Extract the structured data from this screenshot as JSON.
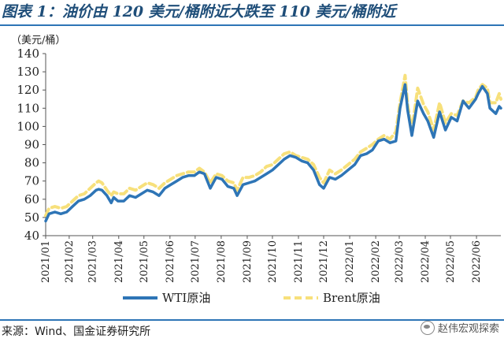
{
  "figure": {
    "title": "图表 1：油价由 120 美元/桶附近大跌至 110 美元/桶附近",
    "source": "来源：Wind、国金证券研究所",
    "watermark": "赵伟宏观探索"
  },
  "colors": {
    "wti": "#2e75b6",
    "brent": "#f7e07b",
    "title": "#1f4e79",
    "rule": "#2e75b6"
  },
  "chart_data": {
    "type": "line",
    "unit_label": "（美元/桶）",
    "ylim": [
      40,
      140
    ],
    "yticks": [
      40,
      50,
      60,
      70,
      80,
      90,
      100,
      110,
      120,
      130,
      140
    ],
    "xlim": [
      "2021-01-04",
      "2022-06-30"
    ],
    "xticks": [
      "2021/01",
      "2021/02",
      "2021/03",
      "2021/04",
      "2021/05",
      "2021/06",
      "2021/07",
      "2021/08",
      "2021/09",
      "2021/10",
      "2021/11",
      "2021/12",
      "2022/01",
      "2022/02",
      "2022/03",
      "2022/04",
      "2022/05",
      "2022/06"
    ],
    "grid": false,
    "legend_position": "bottom",
    "series": [
      {
        "name": "WTI原油",
        "color": "#2e75b6",
        "style": "solid",
        "points": [
          [
            "2021-01-04",
            48
          ],
          [
            "2021-01-08",
            52
          ],
          [
            "2021-01-15",
            53
          ],
          [
            "2021-01-22",
            52
          ],
          [
            "2021-01-29",
            53
          ],
          [
            "2021-02-05",
            56
          ],
          [
            "2021-02-12",
            59
          ],
          [
            "2021-02-19",
            60
          ],
          [
            "2021-02-26",
            62
          ],
          [
            "2021-03-05",
            65
          ],
          [
            "2021-03-08",
            65.5
          ],
          [
            "2021-03-12",
            65
          ],
          [
            "2021-03-18",
            62
          ],
          [
            "2021-03-23",
            58
          ],
          [
            "2021-03-26",
            61
          ],
          [
            "2021-03-31",
            59
          ],
          [
            "2021-04-07",
            59
          ],
          [
            "2021-04-14",
            62
          ],
          [
            "2021-04-21",
            61
          ],
          [
            "2021-04-28",
            63
          ],
          [
            "2021-05-05",
            65
          ],
          [
            "2021-05-12",
            64
          ],
          [
            "2021-05-19",
            62
          ],
          [
            "2021-05-26",
            66
          ],
          [
            "2021-06-02",
            68
          ],
          [
            "2021-06-09",
            70
          ],
          [
            "2021-06-16",
            72
          ],
          [
            "2021-06-23",
            73
          ],
          [
            "2021-06-30",
            73
          ],
          [
            "2021-07-06",
            75
          ],
          [
            "2021-07-12",
            74
          ],
          [
            "2021-07-19",
            66
          ],
          [
            "2021-07-26",
            72
          ],
          [
            "2021-08-02",
            71
          ],
          [
            "2021-08-09",
            67
          ],
          [
            "2021-08-16",
            66
          ],
          [
            "2021-08-20",
            62
          ],
          [
            "2021-08-27",
            68
          ],
          [
            "2021-09-03",
            69
          ],
          [
            "2021-09-10",
            70
          ],
          [
            "2021-09-17",
            72
          ],
          [
            "2021-09-24",
            74
          ],
          [
            "2021-10-01",
            76
          ],
          [
            "2021-10-08",
            79
          ],
          [
            "2021-10-15",
            82
          ],
          [
            "2021-10-22",
            84
          ],
          [
            "2021-10-29",
            83
          ],
          [
            "2021-11-05",
            81
          ],
          [
            "2021-11-12",
            80
          ],
          [
            "2021-11-19",
            76
          ],
          [
            "2021-11-26",
            68
          ],
          [
            "2021-12-01",
            66
          ],
          [
            "2021-12-08",
            72
          ],
          [
            "2021-12-15",
            71
          ],
          [
            "2021-12-22",
            73
          ],
          [
            "2021-12-30",
            76
          ],
          [
            "2022-01-07",
            79
          ],
          [
            "2022-01-14",
            84
          ],
          [
            "2022-01-21",
            85
          ],
          [
            "2022-01-28",
            87
          ],
          [
            "2022-02-04",
            92
          ],
          [
            "2022-02-11",
            93
          ],
          [
            "2022-02-18",
            91
          ],
          [
            "2022-02-25",
            92
          ],
          [
            "2022-03-02",
            110
          ],
          [
            "2022-03-08",
            123
          ],
          [
            "2022-03-11",
            109
          ],
          [
            "2022-03-16",
            95
          ],
          [
            "2022-03-23",
            114
          ],
          [
            "2022-03-30",
            107
          ],
          [
            "2022-04-04",
            103
          ],
          [
            "2022-04-11",
            94
          ],
          [
            "2022-04-18",
            108
          ],
          [
            "2022-04-25",
            98
          ],
          [
            "2022-05-02",
            105
          ],
          [
            "2022-05-09",
            103
          ],
          [
            "2022-05-16",
            114
          ],
          [
            "2022-05-23",
            110
          ],
          [
            "2022-05-31",
            115
          ],
          [
            "2022-06-03",
            118
          ],
          [
            "2022-06-08",
            122
          ],
          [
            "2022-06-14",
            118
          ],
          [
            "2022-06-17",
            110
          ],
          [
            "2022-06-24",
            107
          ],
          [
            "2022-06-28",
            111
          ],
          [
            "2022-06-30",
            110
          ]
        ]
      },
      {
        "name": "Brent原油",
        "color": "#f7e07b",
        "style": "dashed",
        "points": [
          [
            "2021-01-04",
            51
          ],
          [
            "2021-01-08",
            55
          ],
          [
            "2021-01-15",
            56
          ],
          [
            "2021-01-22",
            55
          ],
          [
            "2021-01-29",
            56
          ],
          [
            "2021-02-05",
            59
          ],
          [
            "2021-02-12",
            62
          ],
          [
            "2021-02-19",
            63
          ],
          [
            "2021-02-26",
            66
          ],
          [
            "2021-03-05",
            69
          ],
          [
            "2021-03-08",
            70
          ],
          [
            "2021-03-12",
            69
          ],
          [
            "2021-03-18",
            65
          ],
          [
            "2021-03-23",
            62
          ],
          [
            "2021-03-26",
            64
          ],
          [
            "2021-03-31",
            63
          ],
          [
            "2021-04-07",
            63
          ],
          [
            "2021-04-14",
            66
          ],
          [
            "2021-04-21",
            65
          ],
          [
            "2021-04-28",
            67
          ],
          [
            "2021-05-05",
            69
          ],
          [
            "2021-05-12",
            68
          ],
          [
            "2021-05-19",
            66
          ],
          [
            "2021-05-26",
            69
          ],
          [
            "2021-06-02",
            71
          ],
          [
            "2021-06-09",
            73
          ],
          [
            "2021-06-16",
            74
          ],
          [
            "2021-06-23",
            75
          ],
          [
            "2021-06-30",
            75
          ],
          [
            "2021-07-06",
            77
          ],
          [
            "2021-07-12",
            75
          ],
          [
            "2021-07-19",
            69
          ],
          [
            "2021-07-26",
            74
          ],
          [
            "2021-08-02",
            73
          ],
          [
            "2021-08-09",
            70
          ],
          [
            "2021-08-16",
            69
          ],
          [
            "2021-08-20",
            65
          ],
          [
            "2021-08-27",
            72
          ],
          [
            "2021-09-03",
            72
          ],
          [
            "2021-09-10",
            73
          ],
          [
            "2021-09-17",
            75
          ],
          [
            "2021-09-24",
            78
          ],
          [
            "2021-10-01",
            79
          ],
          [
            "2021-10-08",
            82
          ],
          [
            "2021-10-15",
            85
          ],
          [
            "2021-10-22",
            86
          ],
          [
            "2021-10-29",
            84
          ],
          [
            "2021-11-05",
            83
          ],
          [
            "2021-11-12",
            82
          ],
          [
            "2021-11-19",
            79
          ],
          [
            "2021-11-26",
            72
          ],
          [
            "2021-12-01",
            69
          ],
          [
            "2021-12-08",
            76
          ],
          [
            "2021-12-15",
            74
          ],
          [
            "2021-12-22",
            76
          ],
          [
            "2021-12-30",
            79
          ],
          [
            "2022-01-07",
            82
          ],
          [
            "2022-01-14",
            86
          ],
          [
            "2022-01-21",
            88
          ],
          [
            "2022-01-28",
            90
          ],
          [
            "2022-02-04",
            93
          ],
          [
            "2022-02-11",
            95
          ],
          [
            "2022-02-18",
            93
          ],
          [
            "2022-02-25",
            97
          ],
          [
            "2022-03-02",
            113
          ],
          [
            "2022-03-08",
            128
          ],
          [
            "2022-03-11",
            112
          ],
          [
            "2022-03-16",
            98
          ],
          [
            "2022-03-23",
            121
          ],
          [
            "2022-03-30",
            112
          ],
          [
            "2022-04-04",
            108
          ],
          [
            "2022-04-11",
            98
          ],
          [
            "2022-04-18",
            113
          ],
          [
            "2022-04-25",
            102
          ],
          [
            "2022-05-02",
            107
          ],
          [
            "2022-05-09",
            106
          ],
          [
            "2022-05-16",
            114
          ],
          [
            "2022-05-23",
            113
          ],
          [
            "2022-05-31",
            116
          ],
          [
            "2022-06-03",
            120
          ],
          [
            "2022-06-08",
            123
          ],
          [
            "2022-06-14",
            121
          ],
          [
            "2022-06-17",
            113
          ],
          [
            "2022-06-24",
            113
          ],
          [
            "2022-06-28",
            118
          ],
          [
            "2022-06-30",
            115
          ]
        ]
      }
    ]
  }
}
